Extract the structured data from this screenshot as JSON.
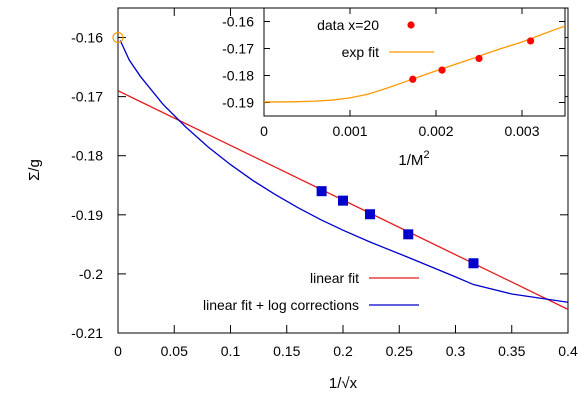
{
  "chart_data": [
    {
      "type": "line",
      "xlabel": "1/√x",
      "ylabel": "Σ/g",
      "xlim": [
        0,
        0.4
      ],
      "ylim": [
        -0.21,
        -0.155
      ],
      "xticks": [
        0,
        0.05,
        0.1,
        0.15,
        0.2,
        0.25,
        0.3,
        0.35,
        0.4
      ],
      "xtick_labels": [
        "0",
        "0.05",
        "0.1",
        "0.15",
        "0.2",
        "0.25",
        "0.3",
        "0.35",
        "0.4"
      ],
      "yticks": [
        -0.21,
        -0.2,
        -0.19,
        -0.18,
        -0.17,
        -0.16
      ],
      "ytick_labels": [
        "-0.21",
        "-0.2",
        "-0.19",
        "-0.18",
        "-0.17",
        "-0.16"
      ],
      "grid": false,
      "legend_position": "bottom-right",
      "series": [
        {
          "name": "linear fit",
          "kind": "line",
          "color": "#e41a1c",
          "x": [
            0,
            0.4
          ],
          "y": [
            -0.169,
            -0.206
          ]
        },
        {
          "name": "linear fit + log corrections",
          "kind": "line",
          "color": "#0000cc",
          "x": [
            0.002,
            0.01,
            0.02,
            0.04,
            0.06,
            0.08,
            0.1,
            0.12,
            0.14,
            0.16,
            0.18,
            0.2,
            0.224,
            0.258,
            0.3,
            0.316,
            0.35,
            0.4
          ],
          "y": [
            -0.1605,
            -0.1638,
            -0.1666,
            -0.1713,
            -0.1751,
            -0.1785,
            -0.1815,
            -0.1842,
            -0.1866,
            -0.1888,
            -0.1908,
            -0.1926,
            -0.1946,
            -0.1972,
            -0.2005,
            -0.2018,
            -0.2034,
            -0.2048
          ]
        },
        {
          "name": "",
          "kind": "points",
          "marker": "square",
          "color": "#0000cc",
          "x": [
            0.181,
            0.2,
            0.224,
            0.258,
            0.316
          ],
          "y": [
            -0.186,
            -0.1876,
            -0.1899,
            -0.1933,
            -0.1982
          ]
        },
        {
          "name": "",
          "kind": "points",
          "marker": "open-circle",
          "color": "#ff9900",
          "x": [
            0
          ],
          "y": [
            -0.16
          ]
        }
      ]
    },
    {
      "type": "scatter",
      "xlabel": "1/M",
      "xlabel_sup": "2",
      "xlim": [
        0,
        0.0035
      ],
      "ylim": [
        -0.195,
        -0.155
      ],
      "xticks": [
        0,
        0.001,
        0.002,
        0.003
      ],
      "xtick_labels": [
        "0",
        "0.001",
        "0.002",
        "0.003"
      ],
      "yticks": [
        -0.19,
        -0.18,
        -0.17,
        -0.16
      ],
      "ytick_labels": [
        "-0.19",
        "-0.18",
        "-0.17",
        "-0.16"
      ],
      "grid": false,
      "legend_position": "top-left",
      "series": [
        {
          "name": "data x=20",
          "kind": "points",
          "marker": "filled-circle",
          "color": "#ff0000",
          "x": [
            0.00173,
            0.00207,
            0.0025,
            0.0031
          ],
          "y": [
            -0.1814,
            -0.178,
            -0.1737,
            -0.1672
          ]
        },
        {
          "name": "exp fit",
          "kind": "line",
          "color": "#ff9900",
          "x": [
            0,
            0.0002,
            0.0004,
            0.0006,
            0.0008,
            0.001,
            0.0012,
            0.0014,
            0.0016,
            0.0018,
            0.002,
            0.0022,
            0.0024,
            0.0026,
            0.0028,
            0.003,
            0.0032,
            0.0034,
            0.0035
          ],
          "y": [
            -0.1898,
            -0.1898,
            -0.1897,
            -0.1895,
            -0.1891,
            -0.1883,
            -0.187,
            -0.185,
            -0.1828,
            -0.1805,
            -0.1783,
            -0.1761,
            -0.174,
            -0.1717,
            -0.1696,
            -0.1676,
            -0.1652,
            -0.1628,
            -0.1617
          ]
        }
      ]
    }
  ]
}
